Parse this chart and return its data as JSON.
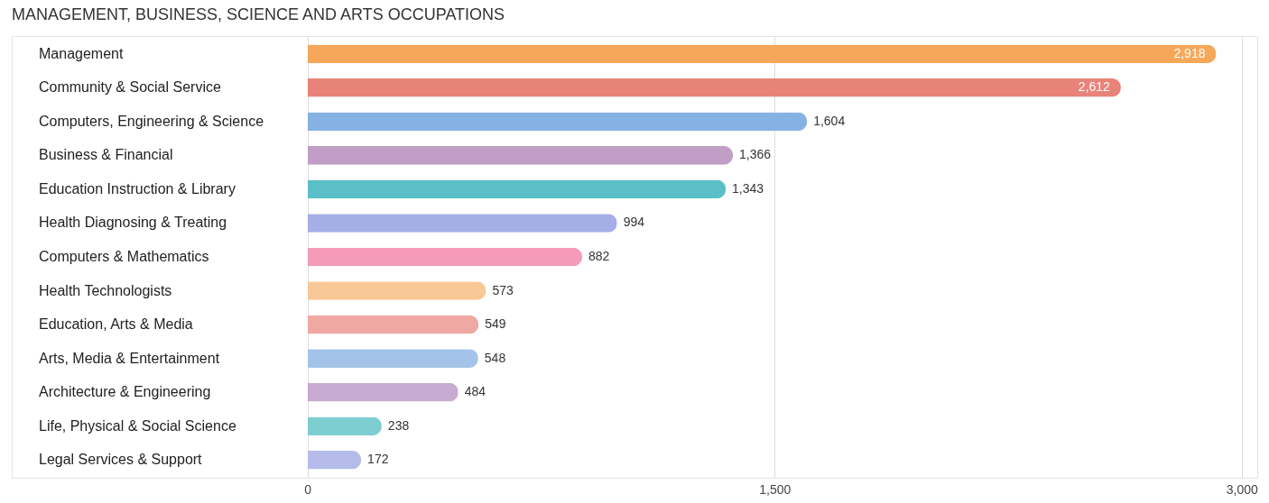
{
  "chart_data": {
    "type": "bar",
    "orientation": "horizontal",
    "title": "MANAGEMENT, BUSINESS, SCIENCE AND ARTS OCCUPATIONS",
    "categories": [
      "Management",
      "Community & Social Service",
      "Computers, Engineering & Science",
      "Business & Financial",
      "Education Instruction & Library",
      "Health Diagnosing & Treating",
      "Computers & Mathematics",
      "Health Technologists",
      "Education, Arts & Media",
      "Arts, Media & Entertainment",
      "Architecture & Engineering",
      "Life, Physical & Social Science",
      "Legal Services & Support"
    ],
    "values": [
      2918,
      2612,
      1604,
      1366,
      1343,
      994,
      882,
      573,
      549,
      548,
      484,
      238,
      172
    ],
    "colors": [
      "#f5a85a",
      "#e8837a",
      "#86b2e3",
      "#c09ec6",
      "#5bbfc7",
      "#a5aee6",
      "#f59ab8",
      "#f9c897",
      "#f0a8a4",
      "#a3c3e8",
      "#c8aad2",
      "#7dcdd1",
      "#b5bce9"
    ],
    "value_labels": [
      "2,918",
      "2,612",
      "1,604",
      "1,366",
      "1,343",
      "994",
      "882",
      "573",
      "549",
      "548",
      "484",
      "238",
      "172"
    ],
    "xlim": [
      -950,
      3050
    ],
    "xticks": [
      0,
      {
        "value": 1500,
        "label": "1,500"
      },
      {
        "value": 3000,
        "label": "3,000"
      }
    ],
    "grid": "x"
  }
}
